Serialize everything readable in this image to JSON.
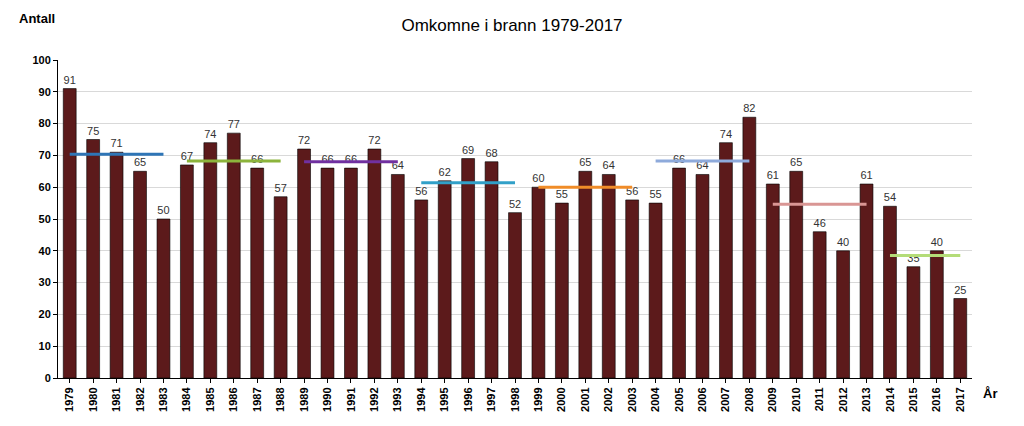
{
  "chart_data": {
    "type": "bar",
    "title": "Omkomne i brann 1979-2017",
    "y_label": "Antall",
    "x_label": "År",
    "categories": [
      "1979",
      "1980",
      "1981",
      "1982",
      "1983",
      "1984",
      "1985",
      "1986",
      "1987",
      "1988",
      "1989",
      "1990",
      "1991",
      "1992",
      "1993",
      "1994",
      "1995",
      "1996",
      "1997",
      "1998",
      "1999",
      "2000",
      "2001",
      "2002",
      "2003",
      "2004",
      "2005",
      "2006",
      "2007",
      "2008",
      "2009",
      "2010",
      "2011",
      "2012",
      "2013",
      "2014",
      "2015",
      "2016",
      "2017"
    ],
    "series": [
      {
        "type": "bar",
        "color": "#5c1a1b",
        "values": [
          91,
          75,
          71,
          65,
          50,
          67,
          74,
          77,
          66,
          57,
          72,
          66,
          66,
          72,
          64,
          56,
          62,
          69,
          68,
          52,
          60,
          55,
          65,
          64,
          56,
          55,
          66,
          64,
          74,
          82,
          61,
          65,
          46,
          40,
          61,
          54,
          35,
          40,
          25
        ]
      },
      {
        "type": "line",
        "color": "#2e75b6",
        "values": [
          70.4,
          70.4,
          70.4,
          70.4,
          70.4,
          null,
          null,
          null,
          null,
          null,
          null,
          null,
          null,
          null,
          null,
          null,
          null,
          null,
          null,
          null,
          null,
          null,
          null,
          null,
          null,
          null,
          null,
          null,
          null,
          null,
          null,
          null,
          null,
          null,
          null,
          null,
          null,
          null,
          null
        ]
      },
      {
        "type": "line",
        "color": "#8cb43c",
        "values": [
          null,
          null,
          null,
          null,
          null,
          68.2,
          68.2,
          68.2,
          68.2,
          68.2,
          null,
          null,
          null,
          null,
          null,
          null,
          null,
          null,
          null,
          null,
          null,
          null,
          null,
          null,
          null,
          null,
          null,
          null,
          null,
          null,
          null,
          null,
          null,
          null,
          null,
          null,
          null,
          null,
          null
        ]
      },
      {
        "type": "line",
        "color": "#7030a0",
        "values": [
          null,
          null,
          null,
          null,
          null,
          null,
          null,
          null,
          null,
          null,
          68,
          68,
          68,
          68,
          68,
          null,
          null,
          null,
          null,
          null,
          null,
          null,
          null,
          null,
          null,
          null,
          null,
          null,
          null,
          null,
          null,
          null,
          null,
          null,
          null,
          null,
          null,
          null,
          null
        ]
      },
      {
        "type": "line",
        "color": "#31a0c8",
        "values": [
          null,
          null,
          null,
          null,
          null,
          null,
          null,
          null,
          null,
          null,
          null,
          null,
          null,
          null,
          null,
          61.4,
          61.4,
          61.4,
          61.4,
          61.4,
          null,
          null,
          null,
          null,
          null,
          null,
          null,
          null,
          null,
          null,
          null,
          null,
          null,
          null,
          null,
          null,
          null,
          null,
          null
        ]
      },
      {
        "type": "line",
        "color": "#f08c28",
        "values": [
          null,
          null,
          null,
          null,
          null,
          null,
          null,
          null,
          null,
          null,
          null,
          null,
          null,
          null,
          null,
          null,
          null,
          null,
          null,
          null,
          60,
          60,
          60,
          60,
          60,
          null,
          null,
          null,
          null,
          null,
          null,
          null,
          null,
          null,
          null,
          null,
          null,
          null,
          null
        ]
      },
      {
        "type": "line",
        "color": "#8eaadb",
        "values": [
          null,
          null,
          null,
          null,
          null,
          null,
          null,
          null,
          null,
          null,
          null,
          null,
          null,
          null,
          null,
          null,
          null,
          null,
          null,
          null,
          null,
          null,
          null,
          null,
          null,
          68.2,
          68.2,
          68.2,
          68.2,
          68.2,
          null,
          null,
          null,
          null,
          null,
          null,
          null,
          null,
          null
        ]
      },
      {
        "type": "line",
        "color": "#d99694",
        "values": [
          null,
          null,
          null,
          null,
          null,
          null,
          null,
          null,
          null,
          null,
          null,
          null,
          null,
          null,
          null,
          null,
          null,
          null,
          null,
          null,
          null,
          null,
          null,
          null,
          null,
          null,
          null,
          null,
          null,
          null,
          54.6,
          54.6,
          54.6,
          54.6,
          54.6,
          null,
          null,
          null,
          null
        ]
      },
      {
        "type": "line",
        "color": "#b4dc78",
        "values": [
          null,
          null,
          null,
          null,
          null,
          null,
          null,
          null,
          null,
          null,
          null,
          null,
          null,
          null,
          null,
          null,
          null,
          null,
          null,
          null,
          null,
          null,
          null,
          null,
          null,
          null,
          null,
          null,
          null,
          null,
          null,
          null,
          null,
          null,
          null,
          38.5,
          38.5,
          38.5,
          38.5
        ]
      }
    ],
    "ylim": [
      0,
      100
    ],
    "yticks": [
      0,
      10,
      20,
      30,
      40,
      50,
      60,
      70,
      80,
      90,
      100
    ],
    "grid": true,
    "data_labels": true
  }
}
